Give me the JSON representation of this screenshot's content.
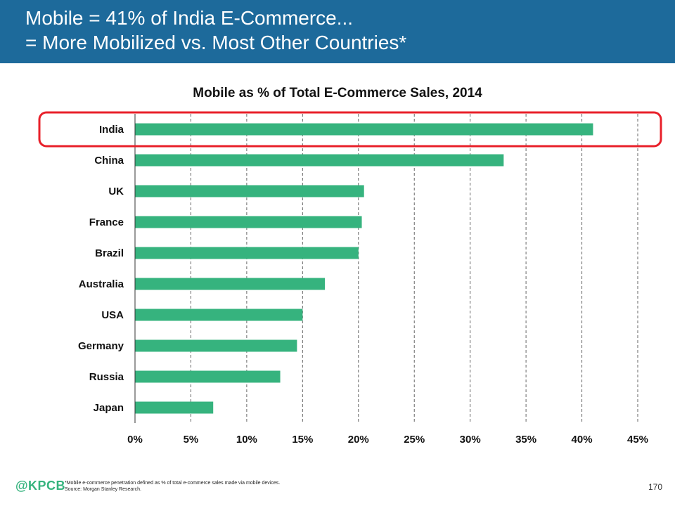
{
  "header": {
    "line1": "Mobile = 41% of India E-Commerce...",
    "line2": "= More Mobilized vs. Most Other Countries*"
  },
  "chart_data": {
    "type": "bar",
    "orientation": "horizontal",
    "title": "Mobile as % of Total E-Commerce Sales, 2014",
    "categories": [
      "India",
      "China",
      "UK",
      "France",
      "Brazil",
      "Australia",
      "USA",
      "Germany",
      "Russia",
      "Japan"
    ],
    "values": [
      41,
      33,
      20.5,
      20.3,
      20,
      17,
      15,
      14.5,
      13,
      7
    ],
    "xlim": [
      0,
      45
    ],
    "ticks": [
      0,
      5,
      10,
      15,
      20,
      25,
      30,
      35,
      40,
      45
    ],
    "tick_suffix": "%",
    "grid": true,
    "highlighted_category": "India",
    "bar_color": "#36b37e",
    "highlight_color": "#e8202a"
  },
  "footer": {
    "logo": "@KPCB",
    "note_line1": "*Mobile e-commerce penetration defined as % of total e-commerce sales made via mobile devices.",
    "note_line2": "Source: Morgan Stanley Research.",
    "page_number": "170"
  },
  "colors": {
    "header_bg": "#1d6a9b",
    "accent_green": "#36b37e"
  }
}
